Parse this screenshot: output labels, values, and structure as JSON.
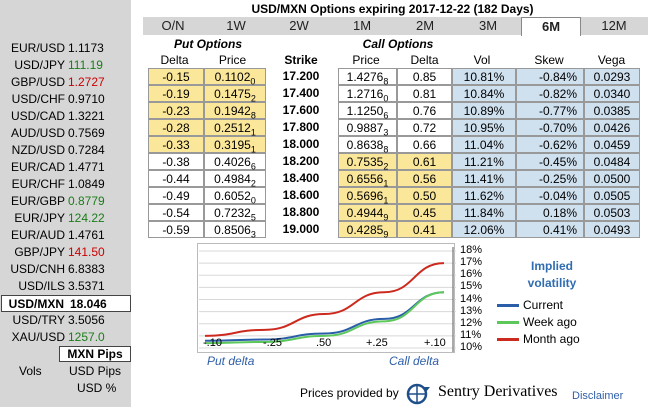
{
  "title": "USD/MXN Options expiring 2017-12-22 (182 Days)",
  "tabs": [
    "O/N",
    "1W",
    "2W",
    "1M",
    "2M",
    "3M",
    "6M",
    "12M"
  ],
  "active_tab": "6M",
  "sidebar": {
    "pairs": [
      {
        "pair": "EUR/USD",
        "value": "1.1173",
        "state": "neutral"
      },
      {
        "pair": "USD/JPY",
        "value": "111.19",
        "state": "up"
      },
      {
        "pair": "GBP/USD",
        "value": "1.2727",
        "state": "down"
      },
      {
        "pair": "USD/CHF",
        "value": "0.9710",
        "state": "neutral"
      },
      {
        "pair": "USD/CAD",
        "value": "1.3221",
        "state": "neutral"
      },
      {
        "pair": "AUD/USD",
        "value": "0.7569",
        "state": "neutral"
      },
      {
        "pair": "NZD/USD",
        "value": "0.7284",
        "state": "neutral"
      },
      {
        "pair": "EUR/CAD",
        "value": "1.4771",
        "state": "neutral"
      },
      {
        "pair": "EUR/CHF",
        "value": "1.0849",
        "state": "neutral"
      },
      {
        "pair": "EUR/GBP",
        "value": "0.8779",
        "state": "up"
      },
      {
        "pair": "EUR/JPY",
        "value": "124.22",
        "state": "up"
      },
      {
        "pair": "EUR/AUD",
        "value": "1.4761",
        "state": "neutral"
      },
      {
        "pair": "GBP/JPY",
        "value": "141.50",
        "state": "down"
      },
      {
        "pair": "USD/CNH",
        "value": "6.8383",
        "state": "neutral"
      },
      {
        "pair": "USD/ILS",
        "value": "3.5371",
        "state": "neutral"
      },
      {
        "pair": "USD/MXN",
        "value": "18.046",
        "state": "selected"
      },
      {
        "pair": "USD/TRY",
        "value": "3.5056",
        "state": "neutral"
      },
      {
        "pair": "XAU/USD",
        "value": "1257.0",
        "state": "up"
      }
    ],
    "mxn_pips": "MXN Pips",
    "vols_label": "Vols",
    "usd_pips": "USD Pips",
    "usd_pct": "USD %"
  },
  "table": {
    "put_header": "Put Options",
    "call_header": "Call Options",
    "columns": [
      "Delta",
      "Price",
      "Strike",
      "Price",
      "Delta",
      "Vol",
      "Skew",
      "Vega"
    ],
    "rows": [
      {
        "put_delta": "-0.15",
        "put_price": "0.1102",
        "put_price_sub": "0",
        "strike": "17.200",
        "call_price": "1.4276",
        "call_price_sub": "8",
        "call_delta": "0.85",
        "vol": "10.81%",
        "skew": "-0.84%",
        "vega": "0.0293"
      },
      {
        "put_delta": "-0.19",
        "put_price": "0.1475",
        "put_price_sub": "2",
        "strike": "17.400",
        "call_price": "1.2716",
        "call_price_sub": "0",
        "call_delta": "0.81",
        "vol": "10.84%",
        "skew": "-0.82%",
        "vega": "0.0340"
      },
      {
        "put_delta": "-0.23",
        "put_price": "0.1942",
        "put_price_sub": "8",
        "strike": "17.600",
        "call_price": "1.1250",
        "call_price_sub": "6",
        "call_delta": "0.76",
        "vol": "10.89%",
        "skew": "-0.77%",
        "vega": "0.0385"
      },
      {
        "put_delta": "-0.28",
        "put_price": "0.2512",
        "put_price_sub": "1",
        "strike": "17.800",
        "call_price": "0.9887",
        "call_price_sub": "3",
        "call_delta": "0.72",
        "vol": "10.95%",
        "skew": "-0.70%",
        "vega": "0.0426"
      },
      {
        "put_delta": "-0.33",
        "put_price": "0.3195",
        "put_price_sub": "1",
        "strike": "18.000",
        "call_price": "0.8638",
        "call_price_sub": "8",
        "call_delta": "0.66",
        "vol": "11.04%",
        "skew": "-0.62%",
        "vega": "0.0459"
      },
      {
        "put_delta": "-0.38",
        "put_price": "0.4026",
        "put_price_sub": "6",
        "strike": "18.200",
        "call_price": "0.7535",
        "call_price_sub": "2",
        "call_delta": "0.61",
        "vol": "11.21%",
        "skew": "-0.45%",
        "vega": "0.0484"
      },
      {
        "put_delta": "-0.44",
        "put_price": "0.4984",
        "put_price_sub": "2",
        "strike": "18.400",
        "call_price": "0.6556",
        "call_price_sub": "1",
        "call_delta": "0.56",
        "vol": "11.41%",
        "skew": "-0.25%",
        "vega": "0.0500"
      },
      {
        "put_delta": "-0.49",
        "put_price": "0.6052",
        "put_price_sub": "0",
        "strike": "18.600",
        "call_price": "0.5696",
        "call_price_sub": "1",
        "call_delta": "0.50",
        "vol": "11.62%",
        "skew": "-0.04%",
        "vega": "0.0505"
      },
      {
        "put_delta": "-0.54",
        "put_price": "0.7232",
        "put_price_sub": "5",
        "strike": "18.800",
        "call_price": "0.4944",
        "call_price_sub": "9",
        "call_delta": "0.45",
        "vol": "11.84%",
        "skew": "0.18%",
        "vega": "0.0503"
      },
      {
        "put_delta": "-0.59",
        "put_price": "0.8506",
        "put_price_sub": "3",
        "strike": "19.000",
        "call_price": "0.4285",
        "call_price_sub": "9",
        "call_delta": "0.41",
        "vol": "12.06%",
        "skew": "0.41%",
        "vega": "0.0493"
      }
    ],
    "otm_put_rows": 5,
    "colors": {
      "otm": "#fbe79a",
      "vol_cells": "#cfe0ef",
      "itm": "#ffffff"
    }
  },
  "chart_data": {
    "type": "line",
    "title": "Implied volatility",
    "x_tick_labels": [
      "-.10",
      "-.25",
      ".50",
      "+.25",
      "+.10"
    ],
    "xlabel_left": "Put delta",
    "xlabel_right": "Call delta",
    "y_tick_labels": [
      "18%",
      "17%",
      "16%",
      "15%",
      "14%",
      "13%",
      "12%",
      "11%",
      "10%"
    ],
    "ylim": [
      10,
      18
    ],
    "series": [
      {
        "name": "Current",
        "color": "#2a5ea8",
        "values": [
          10.6,
          10.7,
          11.2,
          12.4,
          14.6
        ]
      },
      {
        "name": "Week ago",
        "color": "#5cc85c",
        "values": [
          10.4,
          10.5,
          11.0,
          12.2,
          14.6
        ]
      },
      {
        "name": "Month ago",
        "color": "#cc2a1e",
        "values": [
          11.0,
          11.5,
          12.8,
          14.6,
          17.0
        ]
      }
    ]
  },
  "footer": {
    "prices_by": "Prices provided by",
    "provider": "Sentry Derivatives",
    "disclaimer": "Disclaimer"
  }
}
